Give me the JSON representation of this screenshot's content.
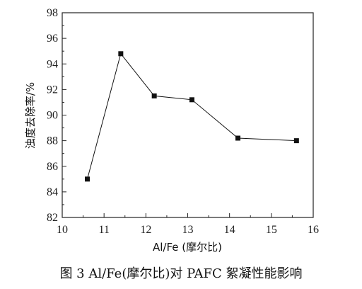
{
  "caption": "图 3   Al/Fe(摩尔比)对 PAFC 絮凝性能影响",
  "chart_data": {
    "type": "line",
    "title": "",
    "xlabel": "Al/Fe (摩尔比)",
    "ylabel": "浊度去除率/%",
    "xlim": [
      10,
      16
    ],
    "ylim": [
      82,
      98
    ],
    "xticks": [
      10,
      11,
      12,
      13,
      14,
      15,
      16
    ],
    "yticks": [
      82,
      84,
      86,
      88,
      90,
      92,
      94,
      96,
      98
    ],
    "grid": false,
    "marker": "square",
    "series": [
      {
        "x": [
          10.6,
          11.4,
          12.2,
          13.1,
          14.2,
          15.6
        ],
        "y": [
          85.0,
          94.8,
          91.5,
          91.2,
          88.2,
          88.0
        ]
      }
    ]
  }
}
